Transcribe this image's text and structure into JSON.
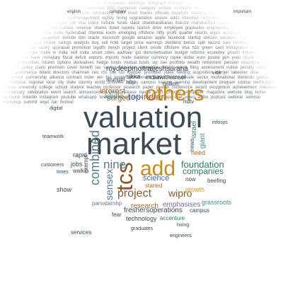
{
  "cloud": {
    "valuation": "valuation",
    "market": "market",
    "others": "others",
    "add": "add",
    "tcs": "tcs",
    "combined": "combined",
    "nine": "nine",
    "sensex": "sensex",
    "project": "project",
    "wipro": "wipro",
    "top": "top",
    "indian": "indian",
    "surged": "surged",
    "kindle": "kindle",
    "interest": "interest",
    "foundation": "foundation",
    "companies": "companies",
    "science": "science",
    "research": "research",
    "emphasises": "emphasises",
    "freshersoperations": "freshersoperations",
    "technology": "technology",
    "accenture": "accenture",
    "giant": "giant",
    "israel": "israel",
    "roydeepmoitra": "roydeepmoitra",
    "rajeshsurana": "rajeshsurana",
    "indiawithisrael": "indiawithisrael",
    "arungiri": "arungiri",
    "sikka": "sikka",
    "jobs": "jobs",
    "walkin": "walkin",
    "rapid": "rapid",
    "need": "need",
    "started": "started",
    "growth": "growth",
    "grassroots": "grassroots",
    "parvatamhp": "parvatamhp",
    "show": "show",
    "fear": "fear",
    "services": "services",
    "accenture2": "accenture",
    "beefing": "beefing",
    "campus": "campus",
    "news": "news",
    "ndtv": "ndtv",
    "http": "http",
    "cloud": "cloud",
    "hiring": "hiring",
    "teamwork": "teamwork",
    "infosys": "infosys",
    "customers": "customers",
    "times": "times",
    "maharashtra": "maharashtra",
    "visit": "visit",
    "fresher": "fresher",
    "digital": "digital",
    "companies2": "company",
    "employees": "employees",
    "engineers": "engineers",
    "million": "million",
    "exempt": "exempt",
    "now": "now",
    "annual": "annual",
    "launch": "launch",
    "mobile": "mobile",
    "graduates": "graduates",
    "industry": "industry",
    "blueprint": "blueprint",
    "indiagovernment": "indiagovernment",
    "english": "english",
    "compare": "compare",
    "important": "important"
  },
  "filler_text": "itsqtpieyindia healthytimes english compare cook itcompanies donlinger infograph finished questworld important hitachi sales mails reasonably concentration blueprint indiagovernment blog bangalore category sensex configure headlines world companies top shifted technology mobile industry reducing comes contrasting visits hired thanks officials hopefully heading rupee cons india assets biggest indians sales sexy week valid newmanagement nightly hiring upgradation unsure adds intended compatibilty mission sons bharat nasscom workplace tech surges job visa loans fortune funds slack chandrasekaran itsector maharashtra campaigns infosys hclinfosys nagpur hexaware itservices kolkata revenue shares listed rupees launch drive employee graduates engineering banking cloud consulting delhi mumbai pune hyderabad chennai kochi emerging offshore nifty profit quarter results wipro accenture cognizant mindtree mphasis capgemini deloitte ibm oracle microsoft google amazon apple facebook startup unicorn valuation market others tcs shares surge stock broker ratings analysts buy sell hold target price earnings dividend bonus split record date freshers walkin interview referral salary appraisal promotion layoffs bench project client onsite offshore visa h1b green card immigration policy trump modi digital india make in india skill india smart cities aadhaar gst demonetisation budget reforms economy growth inflation gdp rate repo reserve bank monetary fiscal deficit exports imports trade balance currency rupee dollar euro pound yen yuan crude oil gold silver commodities futures options derivatives hedge funds mutual funds sip nav portfolio wealth retirement pension insurance health life term policy claim premium cover benefit tax saving deduction exemption refund return filing assessment notice penalty compliance audit governance board directors chairman ceo cfo coo cto founder promoter stake holding acquisition merger takeover deal agreement partnership alliance contract order win bid tender government public sector private sector multinational domestic global international regional local city state country world universe infinity campus training learning development program course certification degree university college school student teacher professor research paper journal conference award recognition achievement milestone anniversary celebration event launch announcement press release media news channel newspaper magazine website blog twitter facebook linkedin instagram youtube whatsapp telegram email phone call message chat video audio podcast webinar seminar workshop summit expo fair festival"
}
